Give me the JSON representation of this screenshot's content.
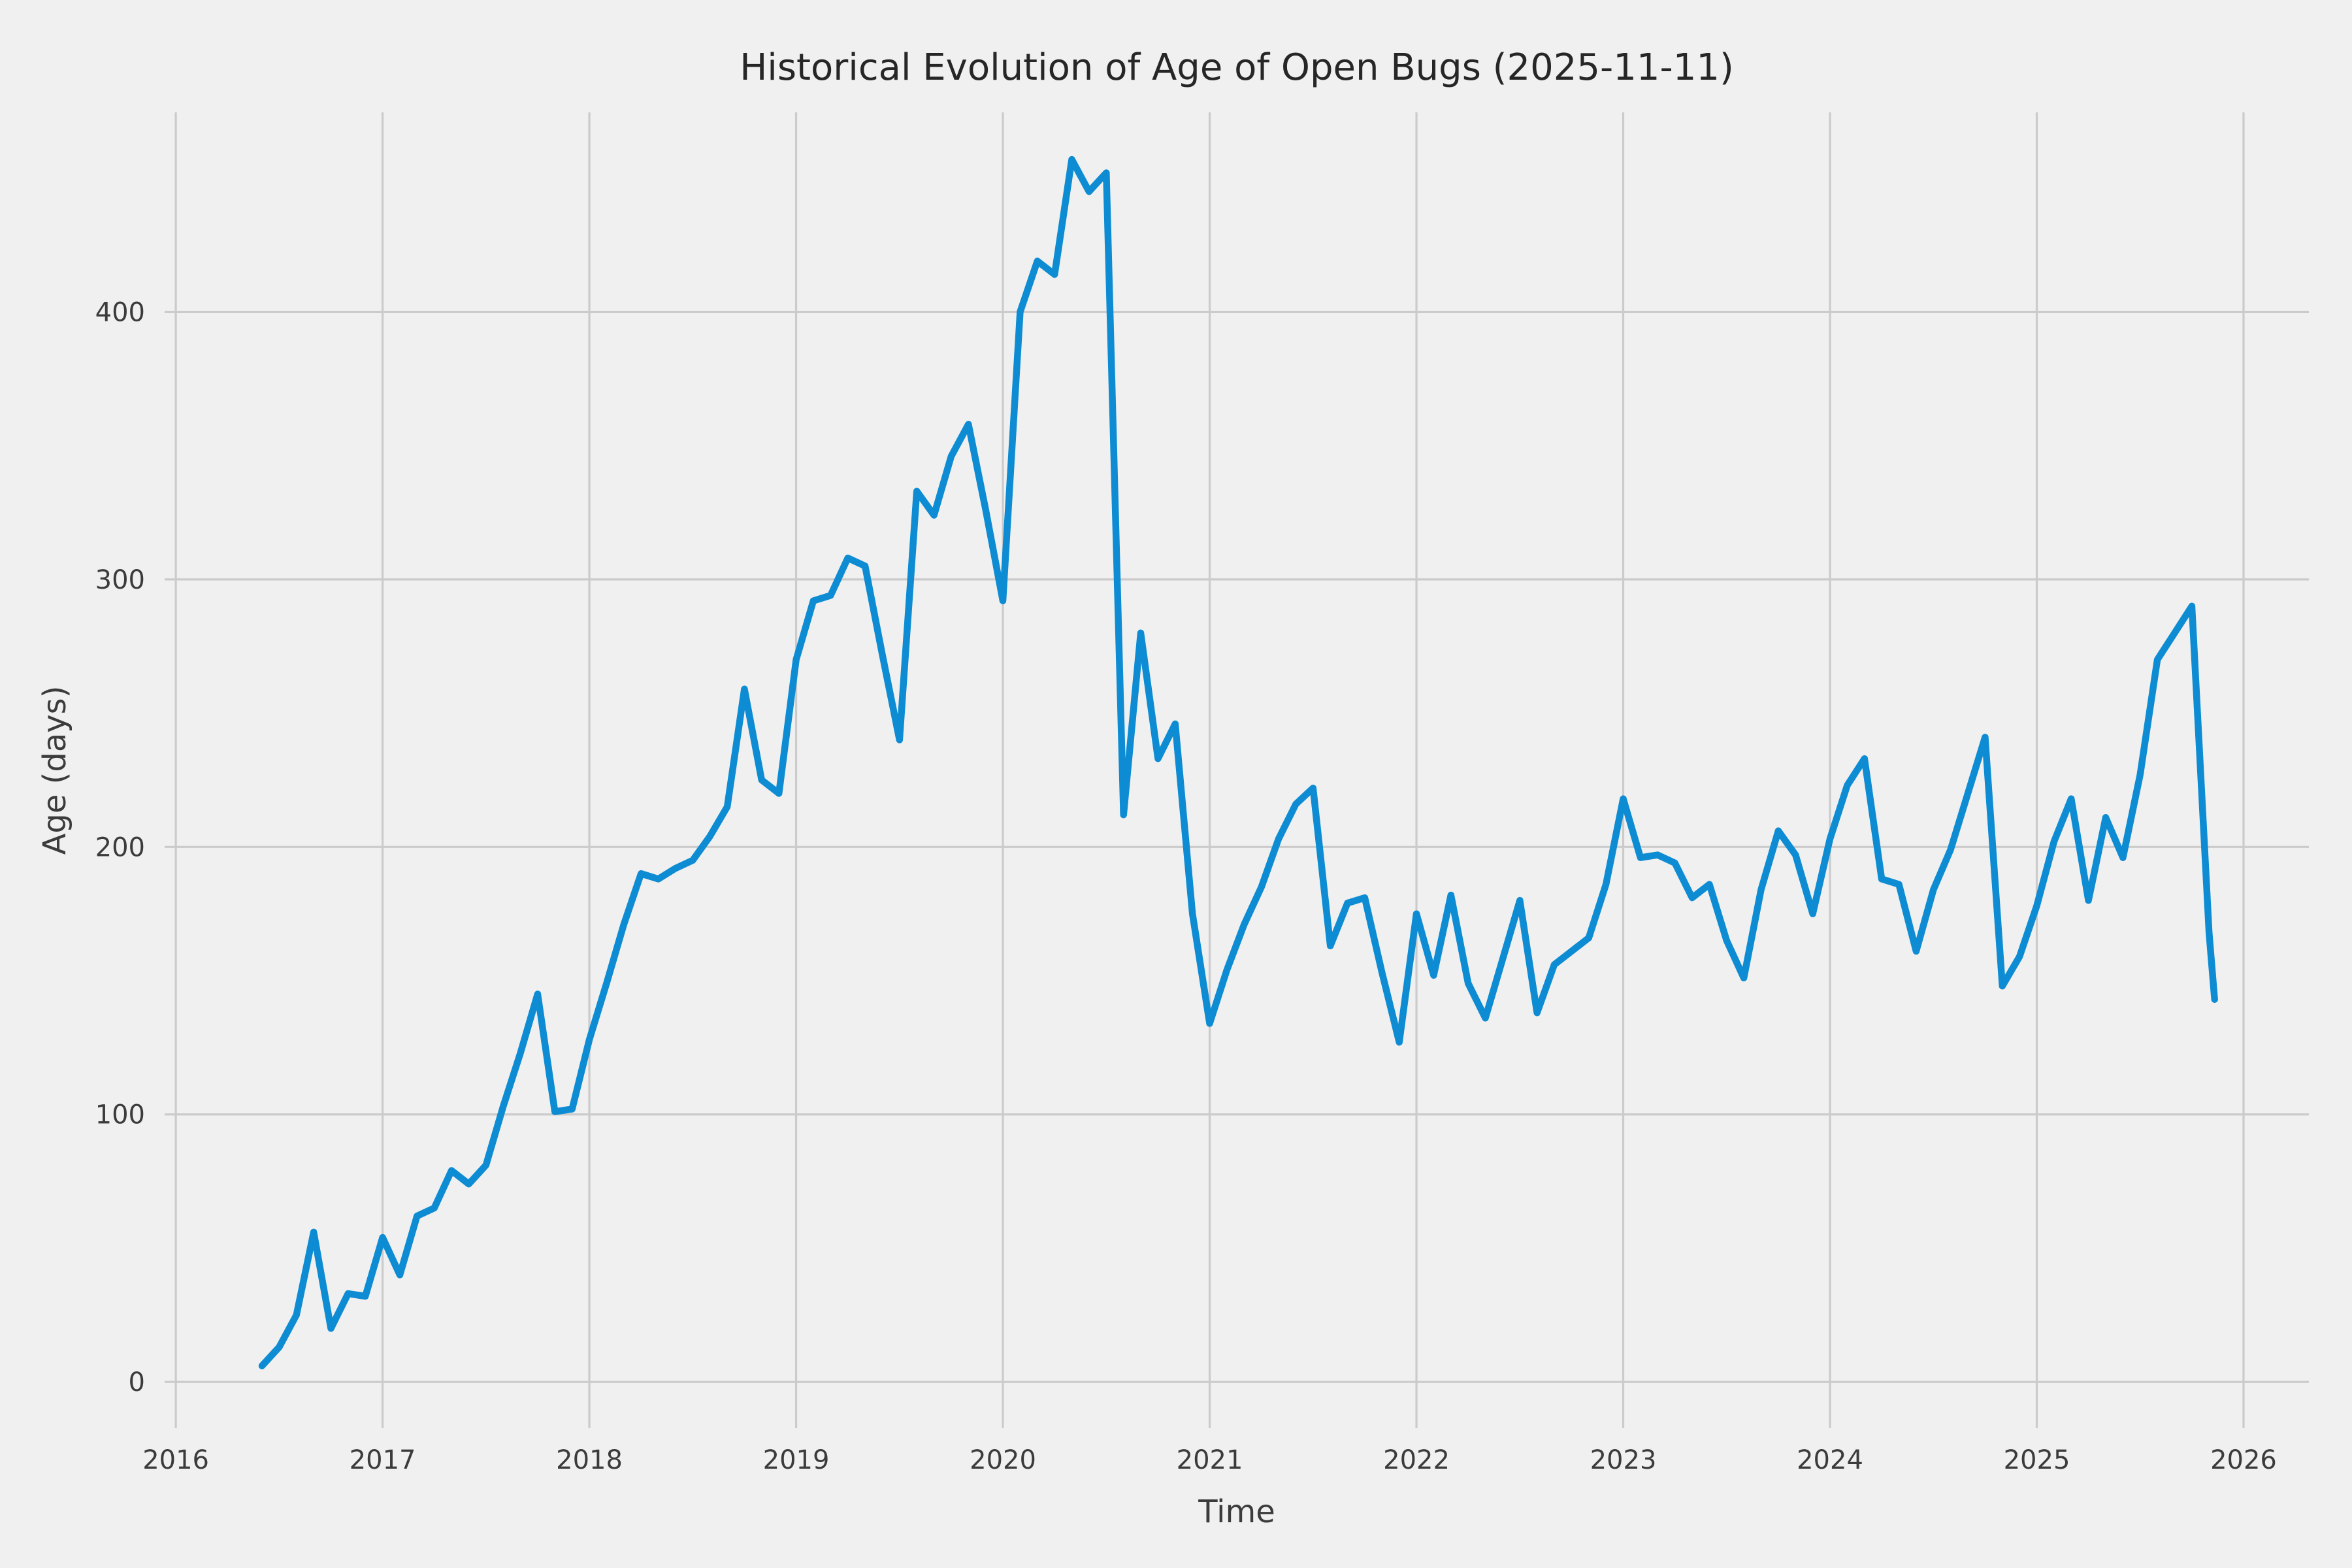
{
  "page": {
    "title": "Historical Evolution of Age of Open Bugs (2025-11-11)"
  },
  "chart_data": {
    "type": "line",
    "title": "Historical Evolution of Age of Open Bugs (2025-11-11)",
    "xlabel": "Time",
    "ylabel": "Age (days)",
    "x_ticks": [
      2016,
      2017,
      2018,
      2019,
      2020,
      2021,
      2022,
      2023,
      2024,
      2025,
      2026
    ],
    "y_ticks": [
      0,
      100,
      200,
      300,
      400
    ],
    "grid": true,
    "legend_position": "none",
    "background_color": "#f0f0f0",
    "grid_color": "#cbcbcb",
    "line_color": "#0d8cd3",
    "line_width": 10.5,
    "series": [
      {
        "name": "age-of-open-bugs-days",
        "points": [
          [
            "2016-06",
            6
          ],
          [
            "2016-07",
            13
          ],
          [
            "2016-08",
            25
          ],
          [
            "2016-09",
            56
          ],
          [
            "2016-10",
            20
          ],
          [
            "2016-11",
            33
          ],
          [
            "2016-12",
            32
          ],
          [
            "2017-01",
            54
          ],
          [
            "2017-02",
            40
          ],
          [
            "2017-03",
            62
          ],
          [
            "2017-04",
            65
          ],
          [
            "2017-05",
            79
          ],
          [
            "2017-06",
            74
          ],
          [
            "2017-07",
            81
          ],
          [
            "2017-08",
            103
          ],
          [
            "2017-09",
            123
          ],
          [
            "2017-10",
            145
          ],
          [
            "2017-11",
            101
          ],
          [
            "2017-12",
            102
          ],
          [
            "2018-01",
            128
          ],
          [
            "2018-02",
            149
          ],
          [
            "2018-03",
            171
          ],
          [
            "2018-04",
            190
          ],
          [
            "2018-05",
            188
          ],
          [
            "2018-06",
            192
          ],
          [
            "2018-07",
            195
          ],
          [
            "2018-08",
            204
          ],
          [
            "2018-09",
            215
          ],
          [
            "2018-10",
            259
          ],
          [
            "2018-11",
            225
          ],
          [
            "2018-12",
            220
          ],
          [
            "2019-01",
            270
          ],
          [
            "2019-02",
            292
          ],
          [
            "2019-03",
            294
          ],
          [
            "2019-04",
            308
          ],
          [
            "2019-05",
            305
          ],
          [
            "2019-06",
            272
          ],
          [
            "2019-07",
            240
          ],
          [
            "2019-08",
            333
          ],
          [
            "2019-09",
            324
          ],
          [
            "2019-10",
            346
          ],
          [
            "2019-11",
            358
          ],
          [
            "2019-12",
            326
          ],
          [
            "2020-01",
            292
          ],
          [
            "2020-02",
            400
          ],
          [
            "2020-03",
            419
          ],
          [
            "2020-04",
            414
          ],
          [
            "2020-05",
            457
          ],
          [
            "2020-06",
            445
          ],
          [
            "2020-07",
            452
          ],
          [
            "2020-08",
            212
          ],
          [
            "2020-09",
            280
          ],
          [
            "2020-10",
            233
          ],
          [
            "2020-11",
            246
          ],
          [
            "2020-12",
            175
          ],
          [
            "2021-01",
            134
          ],
          [
            "2021-02",
            154
          ],
          [
            "2021-03",
            171
          ],
          [
            "2021-04",
            185
          ],
          [
            "2021-05",
            203
          ],
          [
            "2021-06",
            216
          ],
          [
            "2021-07",
            222
          ],
          [
            "2021-08",
            163
          ],
          [
            "2021-09",
            179
          ],
          [
            "2021-10",
            181
          ],
          [
            "2021-11",
            153
          ],
          [
            "2021-12",
            127
          ],
          [
            "2022-01",
            175
          ],
          [
            "2022-02",
            152
          ],
          [
            "2022-03",
            182
          ],
          [
            "2022-04",
            149
          ],
          [
            "2022-05",
            136
          ],
          [
            "2022-06",
            158
          ],
          [
            "2022-07",
            180
          ],
          [
            "2022-08",
            138
          ],
          [
            "2022-09",
            156
          ],
          [
            "2022-10",
            161
          ],
          [
            "2022-11",
            166
          ],
          [
            "2022-12",
            186
          ],
          [
            "2023-01",
            218
          ],
          [
            "2023-02",
            196
          ],
          [
            "2023-03",
            197
          ],
          [
            "2023-04",
            194
          ],
          [
            "2023-05",
            181
          ],
          [
            "2023-06",
            186
          ],
          [
            "2023-07",
            165
          ],
          [
            "2023-08",
            151
          ],
          [
            "2023-09",
            184
          ],
          [
            "2023-10",
            206
          ],
          [
            "2023-11",
            197
          ],
          [
            "2023-12",
            175
          ],
          [
            "2024-01",
            203
          ],
          [
            "2024-02",
            223
          ],
          [
            "2024-03",
            233
          ],
          [
            "2024-04",
            188
          ],
          [
            "2024-05",
            186
          ],
          [
            "2024-06",
            161
          ],
          [
            "2024-07",
            184
          ],
          [
            "2024-08",
            199
          ],
          [
            "2024-09",
            220
          ],
          [
            "2024-10",
            241
          ],
          [
            "2024-11",
            148
          ],
          [
            "2024-12",
            159
          ],
          [
            "2025-01",
            178
          ],
          [
            "2025-02",
            202
          ],
          [
            "2025-03",
            218
          ],
          [
            "2025-04",
            180
          ],
          [
            "2025-05",
            211
          ],
          [
            "2025-06",
            196
          ],
          [
            "2025-07",
            227
          ],
          [
            "2025-08",
            270
          ],
          [
            "2025-09",
            280
          ],
          [
            "2025-10",
            290
          ],
          [
            "2025-11",
            168
          ],
          [
            "2025-11-11",
            143
          ]
        ]
      }
    ]
  }
}
